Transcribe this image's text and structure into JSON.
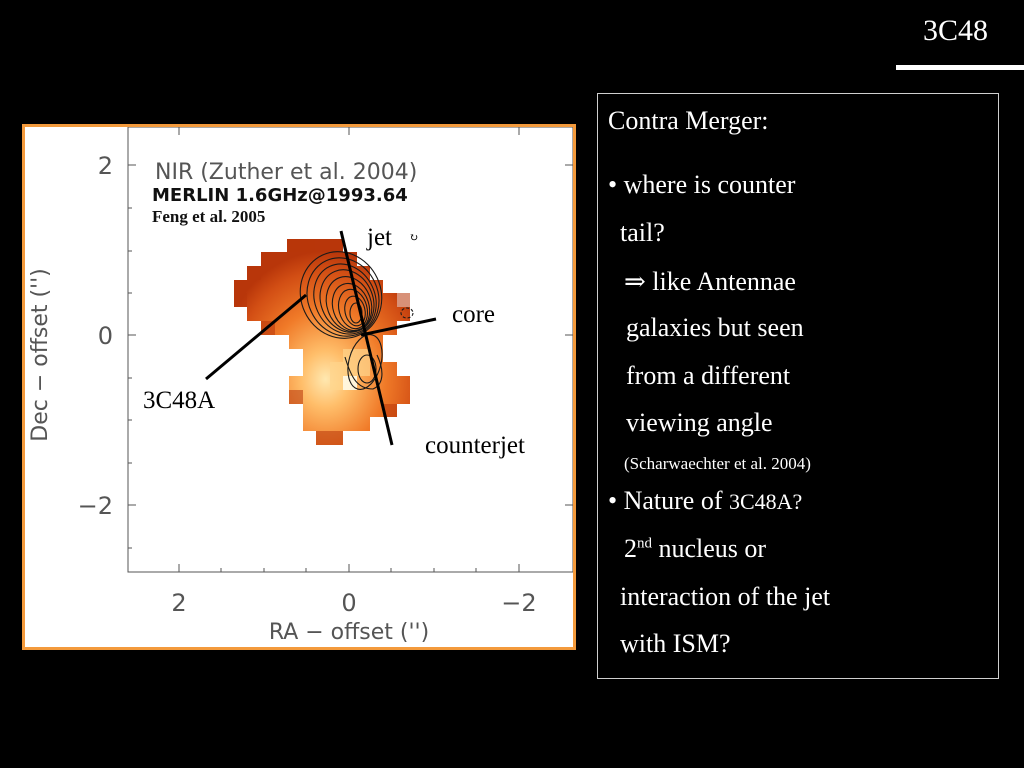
{
  "slide": {
    "title": "3C48"
  },
  "figure": {
    "header_line1": "NIR (Zuther et al. 2004)",
    "header_line2": "MERLIN 1.6GHz@1993.64",
    "header_line3": "Feng et al. 2005",
    "x_axis_label": "RA  − offset ('')",
    "y_axis_label": "Dec  − offset ('')",
    "x_ticks": [
      "2",
      "0",
      "−2"
    ],
    "y_ticks": [
      "2",
      "0",
      "−2"
    ],
    "annotations": {
      "jet": "jet",
      "core": "core",
      "source_a": "3C48A",
      "counterjet": "counterjet"
    },
    "colors": {
      "frame": "#f39a3c",
      "emission_dark": "#b8360a",
      "emission_mid": "#e8621b",
      "emission_bright": "#ffbe6a",
      "emission_peak": "#ffe8b0"
    }
  },
  "panel": {
    "heading": "Contra Merger:",
    "b1_line1": "• where is counter",
    "b1_line2": "tail?",
    "arrow": "⇒",
    "b1_line3": " like Antennae",
    "b1_line4": "galaxies but seen",
    "b1_line5": "from a different",
    "b1_line6": "viewing angle",
    "citation": "(Scharwaechter et al.  2004)",
    "b2_line1_prefix": "• Nature of ",
    "b2_line1_name": "3C48A?",
    "b2_line2_pre": "2",
    "b2_line2_sup": "nd",
    "b2_line2_rest": " nucleus or",
    "b2_line3": "interaction of the jet",
    "b2_line4": "with ISM?"
  }
}
